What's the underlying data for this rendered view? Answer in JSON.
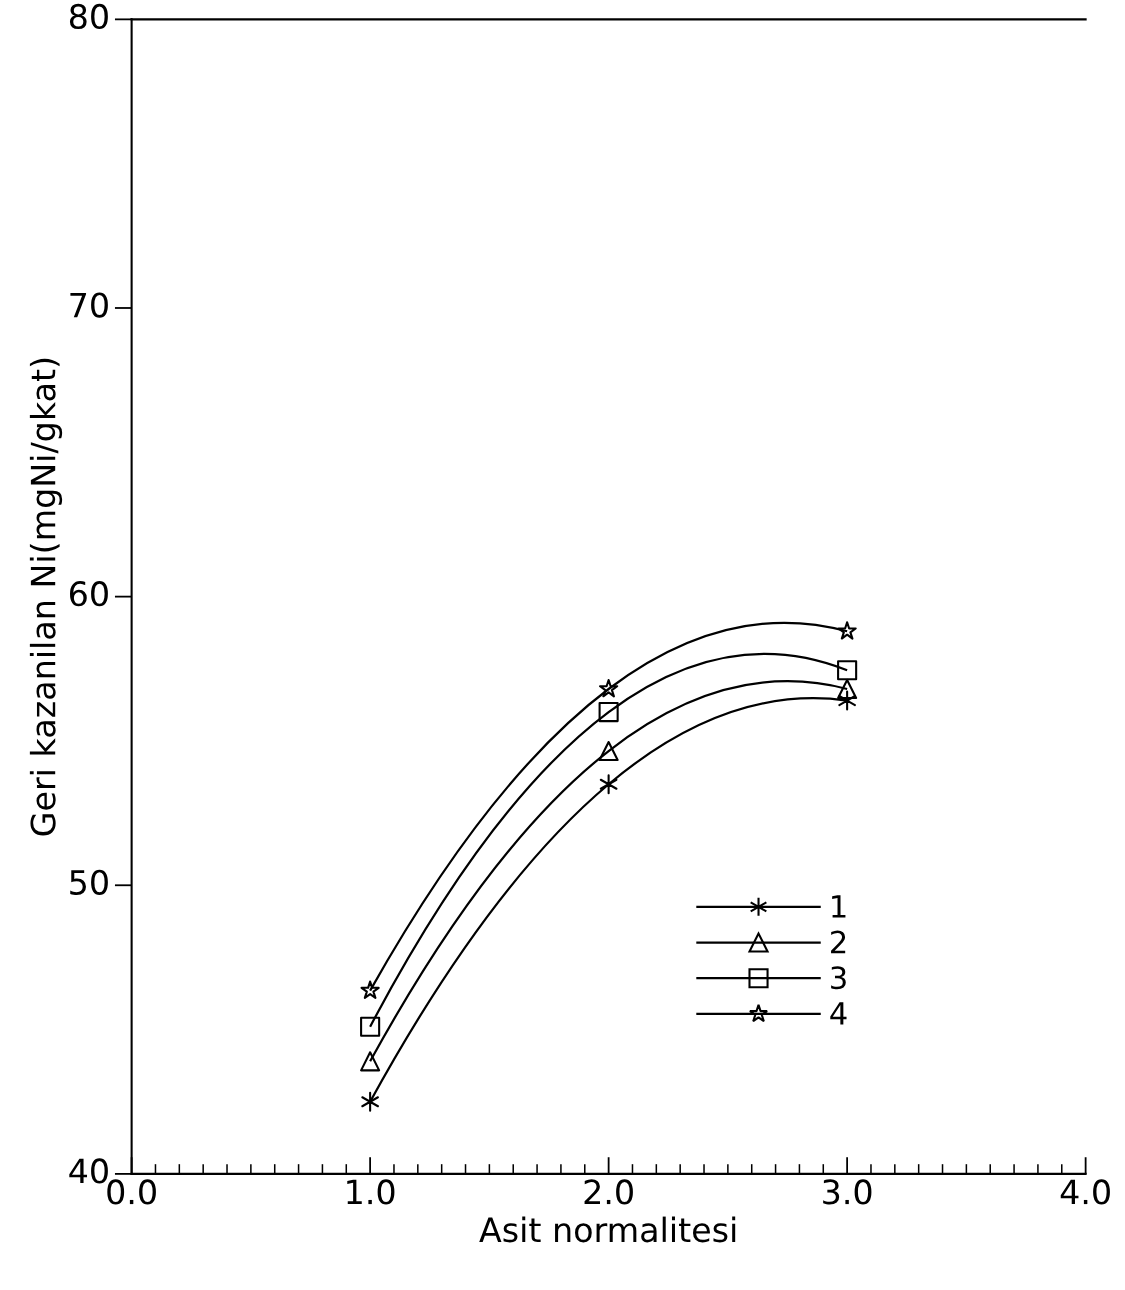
{
  "chart_data": {
    "type": "line",
    "xlabel": "Asit normalitesi",
    "ylabel": "Geri kazanilan Ni(mgNi/gkat)",
    "x": [
      1.0,
      2.0,
      3.0
    ],
    "series": [
      {
        "name": "1",
        "color": "#000000",
        "marker": "cross",
        "values": [
          42.5,
          53.5,
          56.4
        ]
      },
      {
        "name": "2",
        "color": "#000000",
        "marker": "triangle",
        "values": [
          43.9,
          54.65,
          56.8
        ]
      },
      {
        "name": "3",
        "color": "#000000",
        "marker": "square",
        "values": [
          45.1,
          56.0,
          57.45
        ]
      },
      {
        "name": "4",
        "color": "#000000",
        "marker": "star",
        "values": [
          46.35,
          56.8,
          58.8
        ]
      }
    ],
    "xlim": [
      0,
      4
    ],
    "ylim": [
      40,
      80
    ],
    "xticks": [
      {
        "value": 0,
        "label": "0.0"
      },
      {
        "value": 1,
        "label": "1.0"
      },
      {
        "value": 2,
        "label": "2.0"
      },
      {
        "value": 3,
        "label": "3.0"
      },
      {
        "value": 4,
        "label": "4.0"
      }
    ],
    "yticks": [
      40,
      50,
      60,
      70,
      80
    ],
    "legend": "bottom right",
    "grid": false
  }
}
